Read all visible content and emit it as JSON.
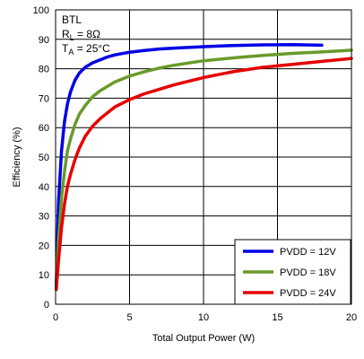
{
  "chart_data": {
    "type": "line",
    "title": "",
    "xlabel": "Total Output Power (W)",
    "ylabel": "Efficiency (%)",
    "xlim": [
      0,
      20
    ],
    "ylim": [
      0,
      100
    ],
    "xticks": [
      0,
      5,
      10,
      15,
      20
    ],
    "yticks": [
      0,
      10,
      20,
      30,
      40,
      50,
      60,
      70,
      80,
      90,
      100
    ],
    "grid": true,
    "legend_position": "bottom-right",
    "annotations": {
      "line1": "BTL",
      "line2_main": "R",
      "line2_sub": "L",
      "line2_rest": " = 8Ω",
      "line3_main": "T",
      "line3_sub": "A",
      "line3_rest": " = 25°C"
    },
    "series": [
      {
        "name": "PVDD = 12V",
        "color": "#0000e6",
        "x": [
          0.05,
          0.2,
          0.4,
          0.6,
          0.8,
          1,
          1.3,
          1.6,
          2,
          2.5,
          3,
          3.5,
          4,
          5,
          6,
          7,
          8,
          10,
          12,
          14,
          16,
          18
        ],
        "y": [
          6,
          35,
          52,
          62,
          68,
          72,
          76,
          78.5,
          80.5,
          82,
          83,
          84,
          84.7,
          85.6,
          86.2,
          86.7,
          87,
          87.5,
          87.9,
          88.1,
          88.2,
          88
        ]
      },
      {
        "name": "PVDD = 18V",
        "color": "#6a9a2a",
        "x": [
          0.05,
          0.2,
          0.4,
          0.6,
          0.8,
          1,
          1.3,
          1.6,
          2,
          2.5,
          3,
          4,
          5,
          6,
          7,
          8,
          10,
          12,
          14,
          16,
          18,
          20
        ],
        "y": [
          6,
          22,
          36,
          45,
          52,
          56,
          61,
          64.5,
          67.5,
          70.5,
          72.5,
          75.5,
          77.5,
          79,
          80.2,
          81.2,
          82.7,
          83.7,
          84.5,
          85.2,
          85.7,
          86.3
        ]
      },
      {
        "name": "PVDD = 24V",
        "color": "#e60000",
        "x": [
          0.05,
          0.2,
          0.4,
          0.6,
          0.8,
          1,
          1.3,
          1.6,
          2,
          2.5,
          3,
          4,
          5,
          6,
          7,
          8,
          10,
          12,
          14,
          16,
          18,
          20
        ],
        "y": [
          5,
          15,
          26,
          34,
          40,
          44,
          49,
          53,
          57,
          60.5,
          63,
          67,
          69.5,
          71.5,
          73,
          74.5,
          77,
          79,
          80.5,
          81.5,
          82.5,
          83.5
        ]
      }
    ]
  }
}
